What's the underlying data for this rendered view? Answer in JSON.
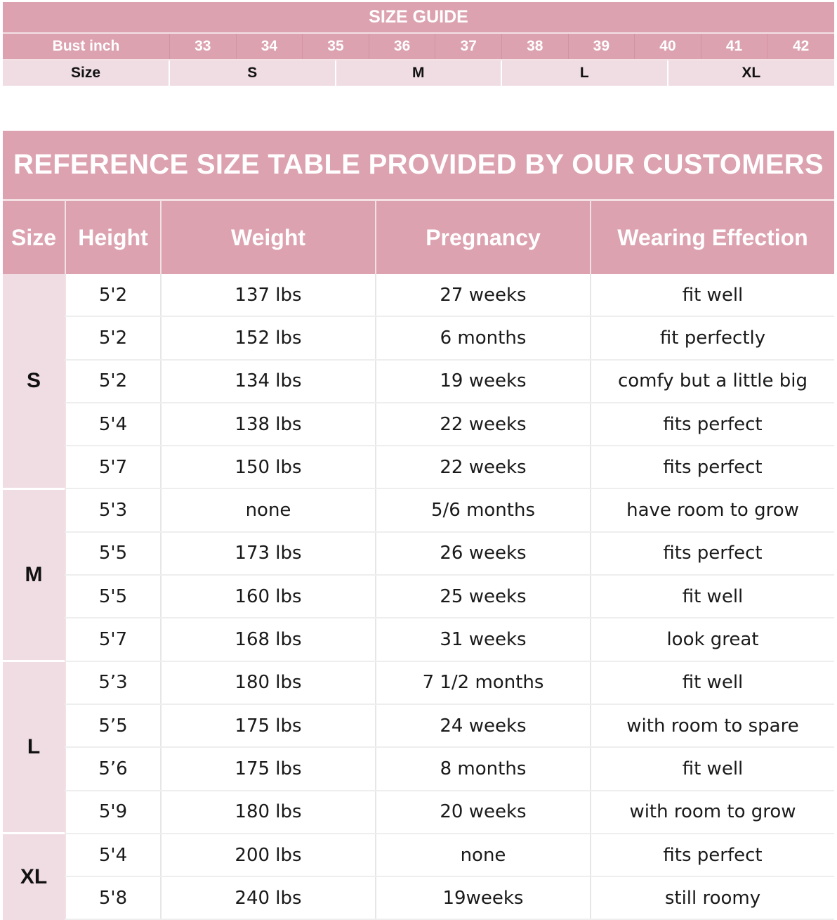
{
  "size_guide": {
    "title": "SIZE GUIDE",
    "bust_label": "Bust inch",
    "bust_values": [
      "33",
      "34",
      "35",
      "36",
      "37",
      "38",
      "39",
      "40",
      "41",
      "42"
    ],
    "size_label": "Size",
    "sizes": [
      "S",
      "M",
      "L",
      "XL"
    ]
  },
  "reference_table": {
    "title": "REFERENCE SIZE TABLE PROVIDED BY OUR CUSTOMERS",
    "headers": {
      "size": "Size",
      "height": "Height",
      "weight": "Weight",
      "pregnancy": "Pregnancy",
      "wearing": "Wearing Effection"
    },
    "groups": [
      {
        "size": "S",
        "rows": [
          {
            "height": "5'2",
            "weight": "137 lbs",
            "pregnancy": "27 weeks",
            "wearing": "fit well"
          },
          {
            "height": "5'2",
            "weight": "152 lbs",
            "pregnancy": "6 months",
            "wearing": "fit perfectly"
          },
          {
            "height": "5'2",
            "weight": "134 lbs",
            "pregnancy": "19 weeks",
            "wearing": "comfy but a little big"
          },
          {
            "height": "5'4",
            "weight": "138 lbs",
            "pregnancy": "22 weeks",
            "wearing": "fits perfect"
          },
          {
            "height": "5'7",
            "weight": "150 lbs",
            "pregnancy": "22 weeks",
            "wearing": "fits perfect"
          }
        ]
      },
      {
        "size": "M",
        "rows": [
          {
            "height": "5'3",
            "weight": "none",
            "pregnancy": "5/6 months",
            "wearing": "have room to grow"
          },
          {
            "height": "5'5",
            "weight": "173 lbs",
            "pregnancy": "26 weeks",
            "wearing": "fits perfect"
          },
          {
            "height": "5'5",
            "weight": "160 lbs",
            "pregnancy": "25 weeks",
            "wearing": "fit well"
          },
          {
            "height": "5'7",
            "weight": "168 lbs",
            "pregnancy": "31 weeks",
            "wearing": "look great"
          }
        ]
      },
      {
        "size": "L",
        "rows": [
          {
            "height": "5’3",
            "weight": "180 lbs",
            "pregnancy": "7 1/2 months",
            "wearing": "fit well"
          },
          {
            "height": "5’5",
            "weight": "175 lbs",
            "pregnancy": "24 weeks",
            "wearing": "with room to spare"
          },
          {
            "height": "5’6",
            "weight": "175 lbs",
            "pregnancy": "8 months",
            "wearing": "fit well"
          },
          {
            "height": "5'9",
            "weight": "180 lbs",
            "pregnancy": "20 weeks",
            "wearing": "with room to grow"
          }
        ]
      },
      {
        "size": "XL",
        "rows": [
          {
            "height": "5'4",
            "weight": "200 lbs",
            "pregnancy": "none",
            "wearing": "fits perfect"
          },
          {
            "height": "5'8",
            "weight": "240 lbs",
            "pregnancy": "19weeks",
            "wearing": "still roomy"
          }
        ]
      }
    ]
  },
  "colors": {
    "header_pink": "#dca2b0",
    "light_pink": "#f0dde3",
    "text_dark": "#111111",
    "text_light": "#ffffff"
  }
}
